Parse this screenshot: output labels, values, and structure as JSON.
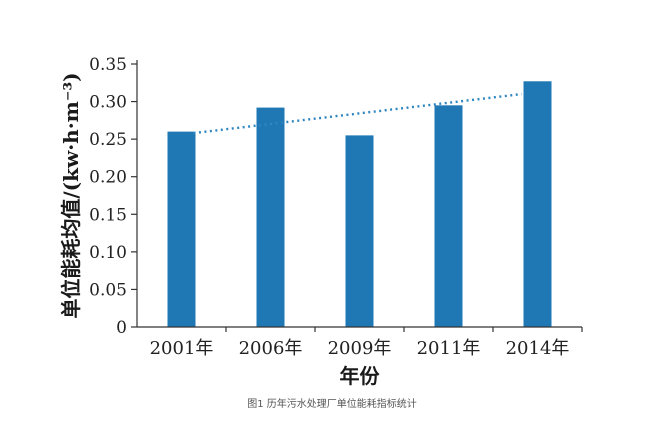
{
  "caption": "图1 历年污水处理厂单位能耗指标统计",
  "chart_data": {
    "type": "bar",
    "categories": [
      "2001年",
      "2006年",
      "2009年",
      "2011年",
      "2014年"
    ],
    "values": [
      0.26,
      0.292,
      0.255,
      0.295,
      0.327
    ],
    "xlabel": "年份",
    "ylabel": "单位能耗均值/(kw·h·m⁻³)",
    "ylim": [
      0,
      0.35
    ],
    "yticks": [
      "0",
      "0.05",
      "0.10",
      "0.15",
      "0.20",
      "0.25",
      "0.30",
      "0.35"
    ],
    "trendline": {
      "style": "dotted",
      "start": 0.258,
      "end": 0.31
    },
    "bar_color": "#1f77b4",
    "trend_color": "#2e86c1",
    "grid": false
  }
}
